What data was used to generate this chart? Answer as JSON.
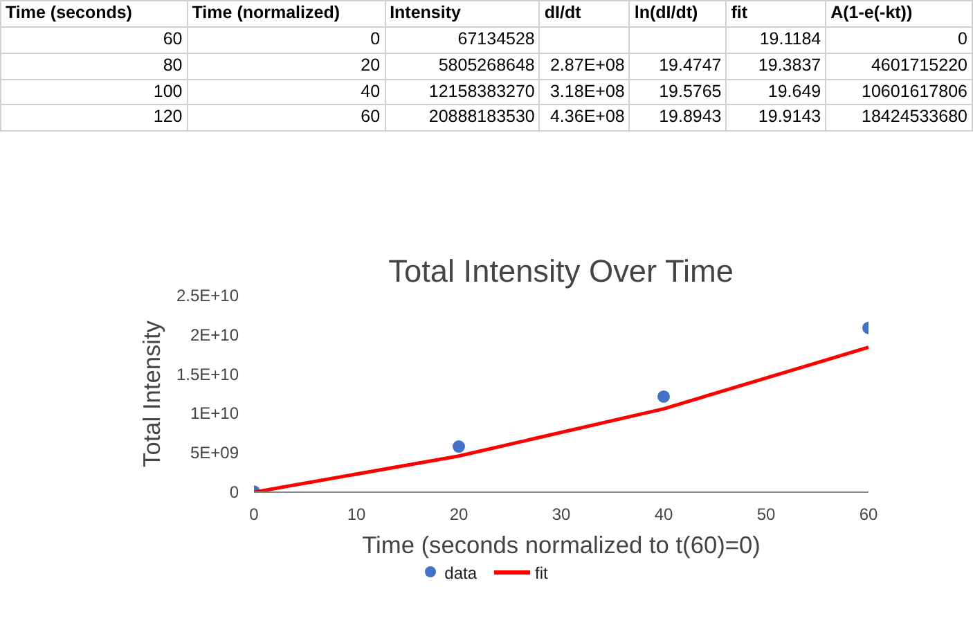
{
  "chart_data": {
    "type": "scatter",
    "title": "Total Intensity Over Time",
    "xlabel": "Time (seconds normalized to t(60)=0)",
    "ylabel": "Total Intensity",
    "x": [
      0,
      20,
      40,
      60
    ],
    "series": [
      {
        "name": "data",
        "color": "#4472c4",
        "marker": "circle",
        "values": [
          67134528,
          5805268648,
          12158383270,
          20888183530
        ]
      },
      {
        "name": "fit",
        "type": "line",
        "color": "#ff0000",
        "line_style": "solid",
        "values": [
          0,
          4601715220,
          10601617806,
          18424533680
        ]
      }
    ],
    "xlim": [
      0,
      60
    ],
    "xticks": [
      0,
      10,
      20,
      30,
      40,
      50,
      60
    ],
    "ylim": [
      0,
      25000000000
    ],
    "yticks": [
      {
        "value": 0,
        "label": "0"
      },
      {
        "value": 5000000000,
        "label": "5E+09"
      },
      {
        "value": 10000000000,
        "label": "1E+10"
      },
      {
        "value": 15000000000,
        "label": "1.5E+10"
      },
      {
        "value": 20000000000,
        "label": "2E+10"
      },
      {
        "value": 25000000000,
        "label": "2.5E+10"
      }
    ],
    "grid": false,
    "legend": "bottom",
    "annotations": [
      "Time (seconds)",
      "Time (normalized)",
      "Intensity",
      "dI/dt",
      "ln(dI/dt)",
      "fit",
      "A(1-e(-kt))",
      "60",
      "0",
      "67134528",
      null,
      null,
      "19.1184",
      "0",
      "80",
      "20",
      "5805268648",
      "2.87E+08",
      "19.4747",
      "19.3837",
      "4601715220",
      "100",
      "40",
      "12158383270",
      "3.18E+08",
      "19.5765",
      "19.649",
      "10601617806",
      "120",
      "60",
      "20888183530",
      "4.36E+08",
      "19.8943",
      "19.9143",
      "18424533680"
    ]
  }
}
